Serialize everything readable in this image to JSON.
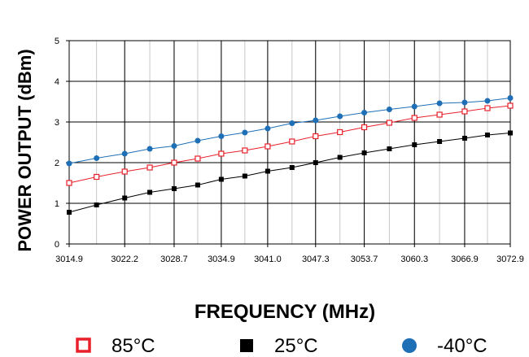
{
  "chart_data": {
    "type": "line",
    "xlabel": "FREQUENCY (MHz)",
    "ylabel": "POWER OUTPUT (dBm)",
    "ylim": [
      0,
      5
    ],
    "xlim": [
      3014.9,
      3072.9
    ],
    "x_ticks": [
      "3014.9",
      "3022.2",
      "3028.7",
      "3034.9",
      "3041.0",
      "3047.3",
      "3053.7",
      "3060.3",
      "3066.9",
      "3072.9"
    ],
    "y_ticks": [
      "0",
      "1",
      "2",
      "3",
      "4",
      "5"
    ],
    "grid": true,
    "legend_position": "bottom",
    "x": [
      3014.9,
      3018.5,
      3022.2,
      3025.5,
      3028.7,
      3031.8,
      3034.9,
      3038.0,
      3041.0,
      3044.2,
      3047.3,
      3050.5,
      3053.7,
      3057.0,
      3060.3,
      3063.6,
      3066.9,
      3069.9,
      3072.9
    ],
    "series": [
      {
        "name": "85°C",
        "color": "#e8202a",
        "marker": "hollow-square",
        "values": [
          1.5,
          1.65,
          1.78,
          1.88,
          2.0,
          2.1,
          2.22,
          2.3,
          2.4,
          2.52,
          2.65,
          2.75,
          2.87,
          2.98,
          3.1,
          3.18,
          3.26,
          3.34,
          3.4
        ]
      },
      {
        "name": "25°C",
        "color": "#000000",
        "marker": "filled-square",
        "values": [
          0.78,
          0.96,
          1.13,
          1.27,
          1.36,
          1.45,
          1.59,
          1.67,
          1.79,
          1.88,
          2.0,
          2.13,
          2.24,
          2.34,
          2.44,
          2.52,
          2.6,
          2.68,
          2.73
        ]
      },
      {
        "name": "-40°C",
        "color": "#1f6fb6",
        "marker": "filled-circle",
        "values": [
          1.98,
          2.11,
          2.22,
          2.34,
          2.41,
          2.54,
          2.65,
          2.74,
          2.84,
          2.97,
          3.04,
          3.14,
          3.23,
          3.31,
          3.38,
          3.46,
          3.48,
          3.52,
          3.59
        ]
      }
    ]
  },
  "legend": [
    {
      "label": "85°C",
      "marker": "hollow-square",
      "color": "#e8202a"
    },
    {
      "label": "25°C",
      "marker": "filled-square",
      "color": "#000000"
    },
    {
      "label": "-40°C",
      "marker": "filled-circle",
      "color": "#1f6fb6"
    }
  ]
}
